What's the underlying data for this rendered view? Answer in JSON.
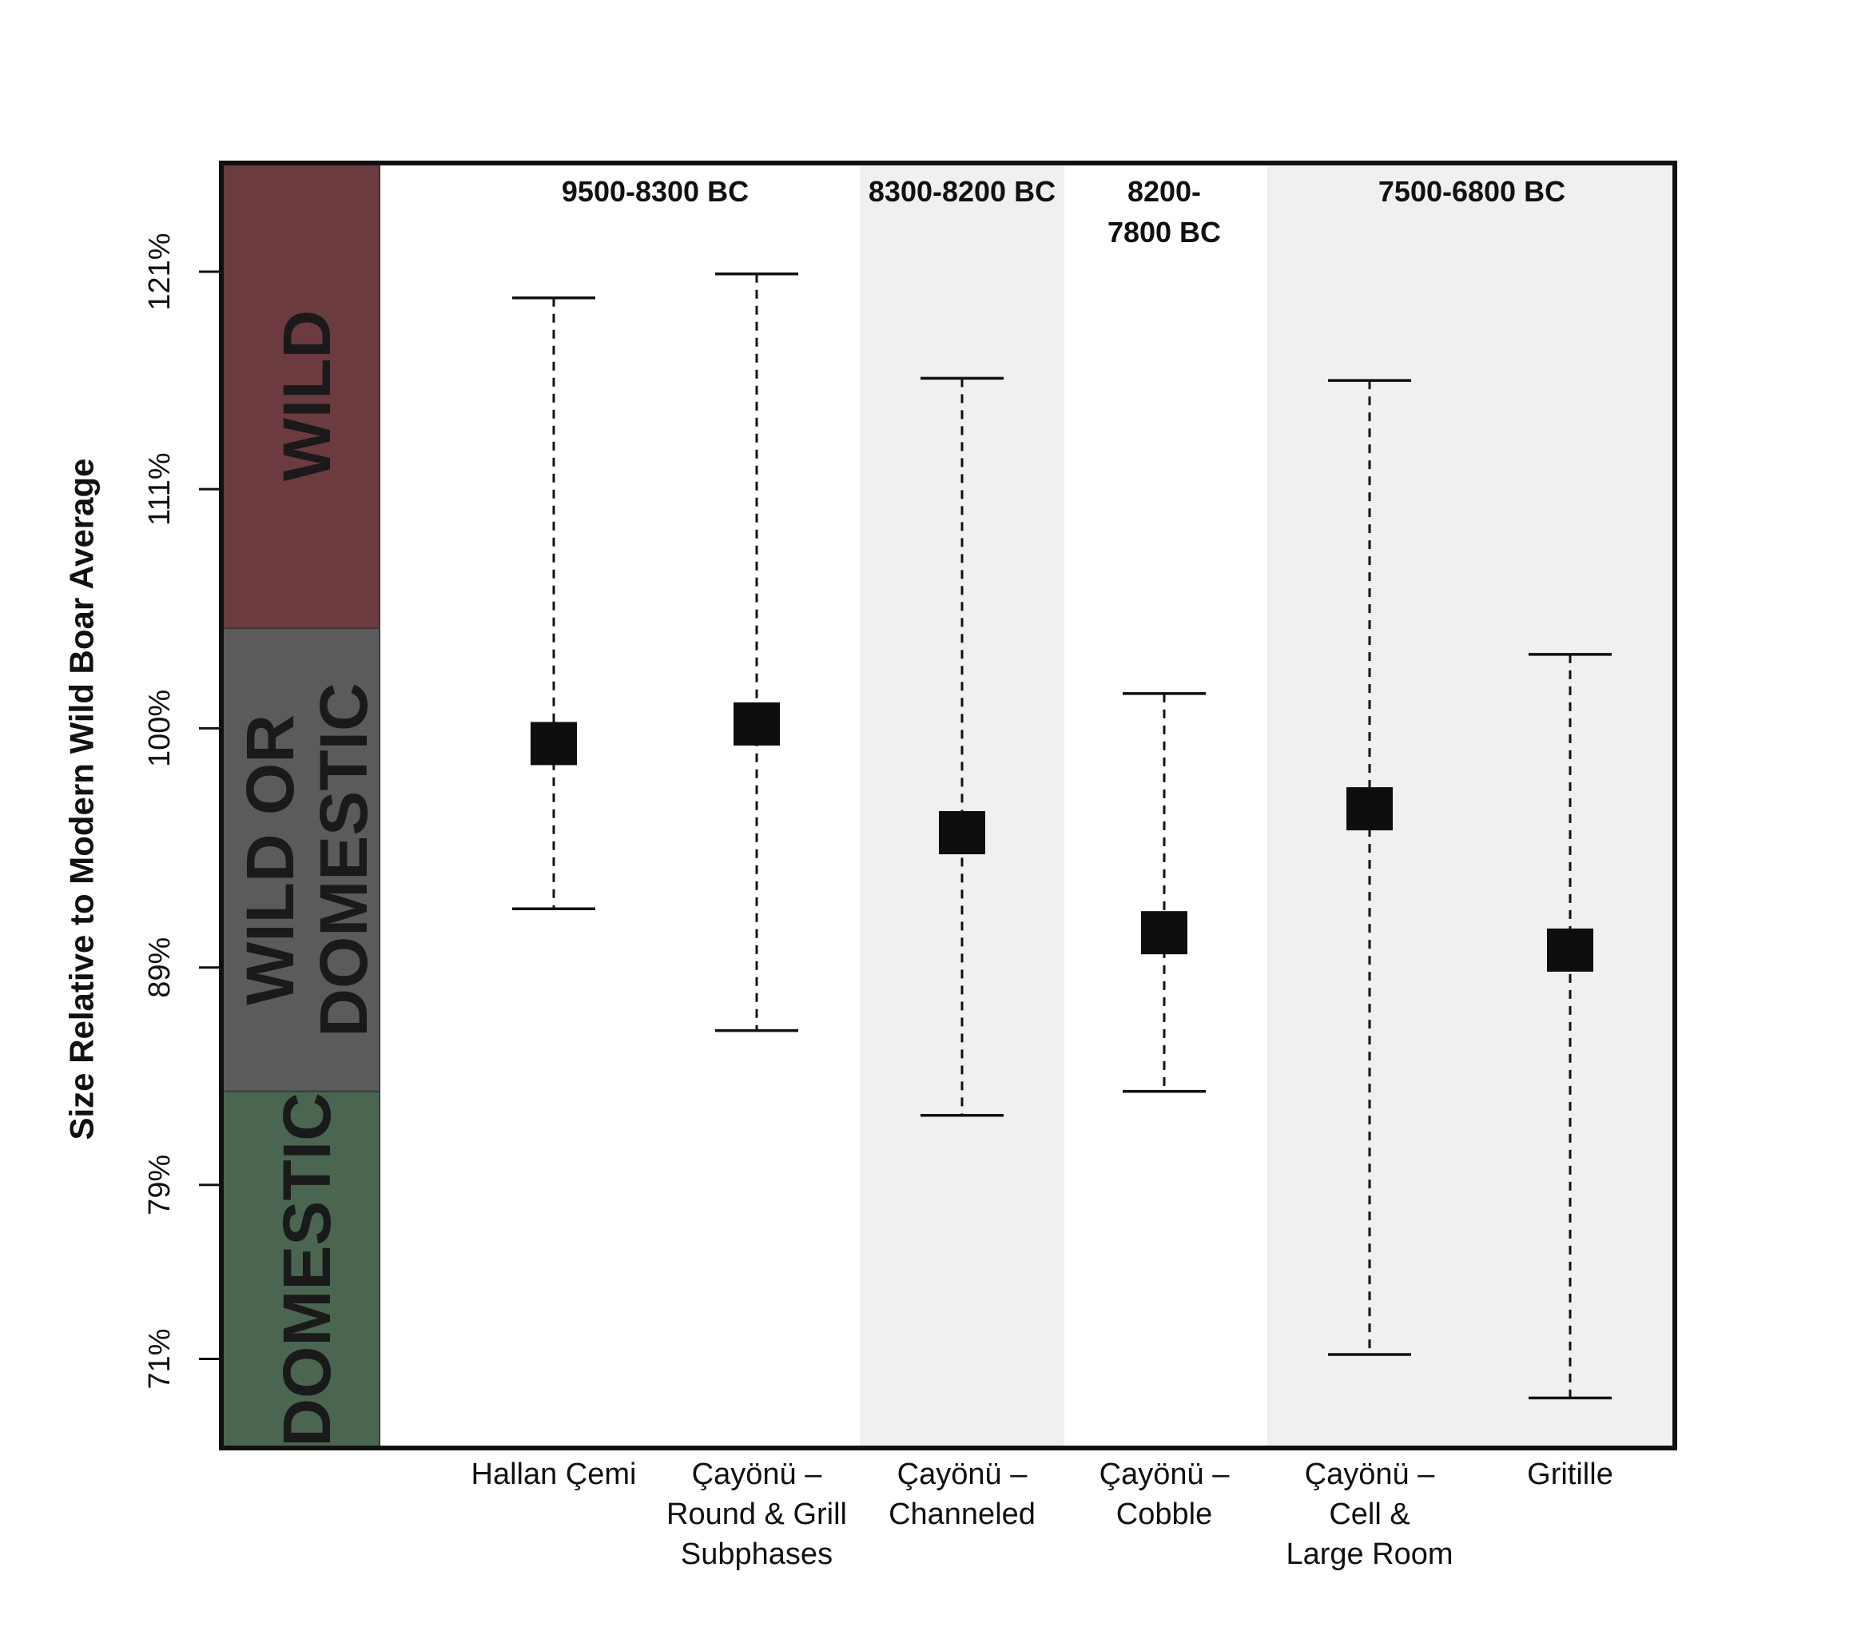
{
  "chart_data": {
    "type": "scatter",
    "ylabel": "Size Relative to Modern Wild Boar Average",
    "xlabel": "",
    "title": "",
    "ylim": [
      66.9,
      126.0
    ],
    "yticks": [
      71,
      79,
      89,
      100,
      111,
      121
    ],
    "ytick_labels": [
      "71%",
      "79%",
      "89%",
      "100%",
      "111%",
      "121%"
    ],
    "categories": [
      [
        "Hallan Çemi"
      ],
      [
        "Çayönü –",
        "Round & Grill",
        "Subphases"
      ],
      [
        "Çayönü –",
        "Channeled"
      ],
      [
        "Çayönü –",
        "Cobble"
      ],
      [
        "Çayönü –",
        "Cell &",
        "Large Room"
      ],
      [
        "Gritille"
      ]
    ],
    "points": [
      {
        "mean": 99.3,
        "lower": 91.7,
        "upper": 119.8
      },
      {
        "mean": 100.2,
        "lower": 86.1,
        "upper": 120.9
      },
      {
        "mean": 95.2,
        "lower": 82.2,
        "upper": 116.1
      },
      {
        "mean": 90.6,
        "lower": 83.3,
        "upper": 101.6
      },
      {
        "mean": 96.3,
        "lower": 71.2,
        "upper": 116.0
      },
      {
        "mean": 89.8,
        "lower": 69.2,
        "upper": 103.4
      }
    ],
    "periods": [
      {
        "label": [
          "9500-8300 BC"
        ],
        "shaded": false
      },
      {
        "label": [
          "8300-8200 BC"
        ],
        "shaded": true
      },
      {
        "label": [
          "8200-",
          "7800 BC"
        ],
        "shaded": false
      },
      {
        "label": [
          "7500-6800 BC"
        ],
        "shaded": true
      }
    ],
    "zones": [
      {
        "label": [
          "WILD"
        ],
        "color": "#6b3b3f"
      },
      {
        "label": [
          "WILD  OR",
          "DOMESTIC"
        ],
        "color": "#5b5b5b"
      },
      {
        "label": [
          "DOMESTIC"
        ],
        "color": "#4a6650"
      }
    ],
    "colors": {
      "marker": "#0d0f0d",
      "shade": "#f0f0f0",
      "frame": "#111111"
    },
    "grid": false,
    "legend": "none"
  }
}
